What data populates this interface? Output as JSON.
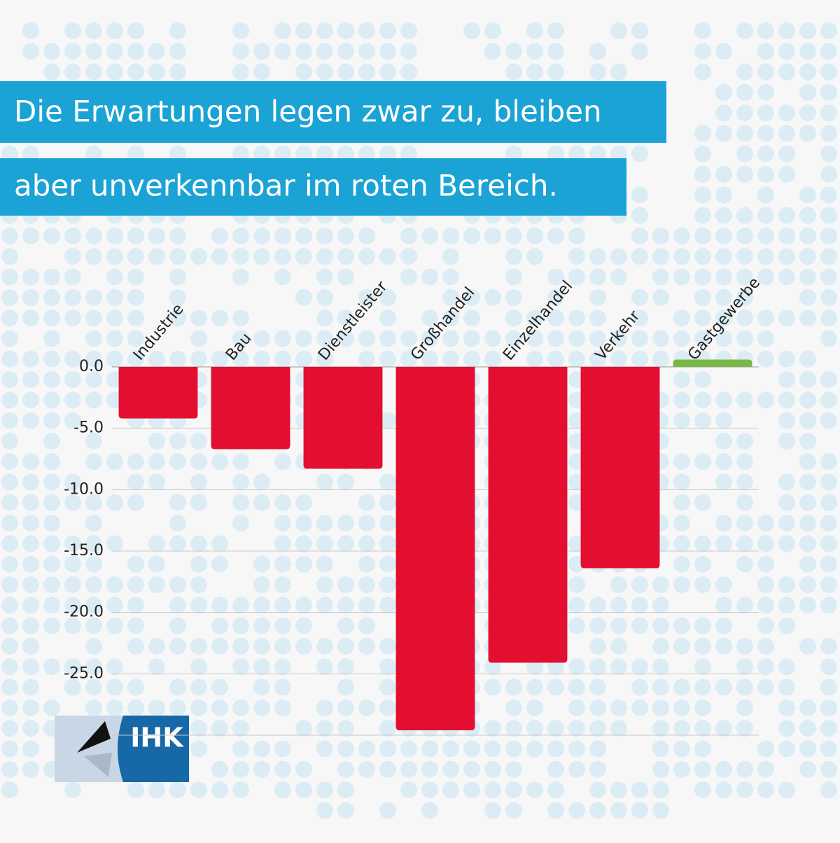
{
  "chart_data": {
    "type": "bar",
    "title_lines": [
      "Die Erwartungen legen zwar zu, bleiben",
      "aber unverkennbar im roten Bereich."
    ],
    "categories": [
      "Industrie",
      "Bau",
      "Dienstleister",
      "Großhandel",
      "Einzelhandel",
      "Verkehr",
      "Gastgewerbe"
    ],
    "values": [
      -4.2,
      -6.7,
      -8.3,
      -29.6,
      -24.1,
      -16.4,
      0.6
    ],
    "negative_color": "#e30e30",
    "positive_color": "#7ab648",
    "ylim": [
      -30,
      0
    ],
    "yticks": [
      {
        "value": 0,
        "label": "0.0"
      },
      {
        "value": -5,
        "label": "-5.0"
      },
      {
        "value": -10,
        "label": "-10.0"
      },
      {
        "value": -15,
        "label": "-15.0"
      },
      {
        "value": -20,
        "label": "-20.0"
      },
      {
        "value": -25,
        "label": "-25.0"
      }
    ],
    "grid": true,
    "logo": "IHK"
  }
}
